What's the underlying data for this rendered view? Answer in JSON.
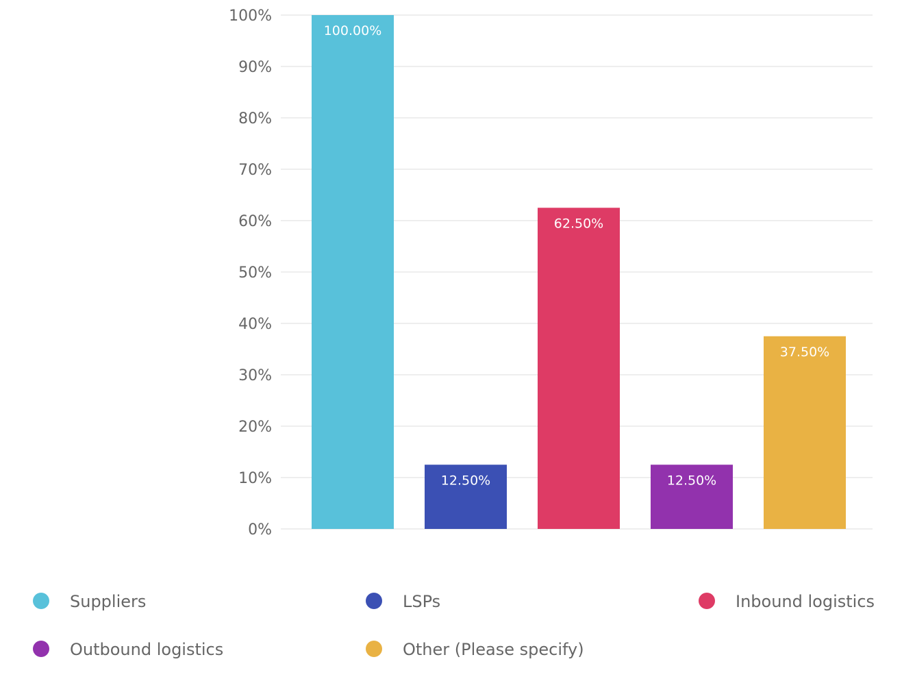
{
  "chart_data": {
    "type": "bar",
    "categories": [
      "Suppliers",
      "LSPs",
      "Inbound logistics",
      "Outbound logistics",
      "Other (Please specify)"
    ],
    "values": [
      100.0,
      12.5,
      62.5,
      12.5,
      37.5
    ],
    "data_labels": [
      "100.00%",
      "12.50%",
      "62.50%",
      "12.50%",
      "37.50%"
    ],
    "colors": [
      "#58c1da",
      "#3b50b4",
      "#de3b65",
      "#9232ad",
      "#e9b244"
    ],
    "ylim": [
      0,
      100
    ],
    "y_ticks": [
      0,
      10,
      20,
      30,
      40,
      50,
      60,
      70,
      80,
      90,
      100
    ],
    "y_tick_labels": [
      "0%",
      "10%",
      "20%",
      "30%",
      "40%",
      "50%",
      "60%",
      "70%",
      "80%",
      "90%",
      "100%"
    ],
    "grid": true,
    "legend_position": "bottom",
    "xlabel": "",
    "ylabel": "",
    "title": ""
  }
}
